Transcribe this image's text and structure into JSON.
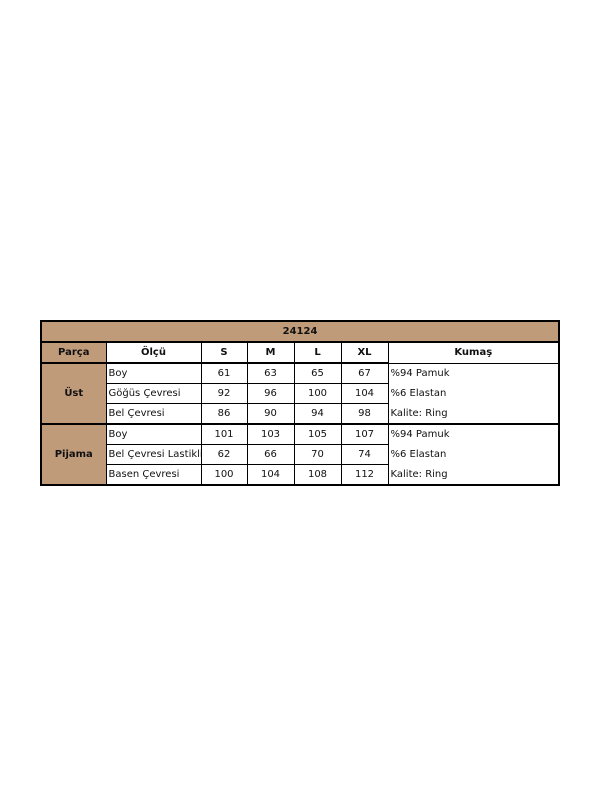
{
  "title": "24124",
  "headers": [
    "Parça",
    "Ölçü",
    "S",
    "M",
    "L",
    "XL",
    "Kumaş"
  ],
  "groups": [
    {
      "name": "Üst",
      "rows": [
        {
          "measure": "Boy",
          "values": [
            "61",
            "63",
            "65",
            "67"
          ],
          "fabric": "%94 Pamuk"
        },
        {
          "measure": "Göğüs Çevresi",
          "values": [
            "92",
            "96",
            "100",
            "104"
          ],
          "fabric": "%6 Elastan"
        },
        {
          "measure": "Bel Çevresi",
          "values": [
            "86",
            "90",
            "94",
            "98"
          ],
          "fabric": "Kalite: Ring"
        }
      ]
    },
    {
      "name": "Pijama",
      "rows": [
        {
          "measure": "Boy",
          "values": [
            "101",
            "103",
            "105",
            "107"
          ],
          "fabric": "%94 Pamuk"
        },
        {
          "measure": "Bel Çevresi Lastikli",
          "values": [
            "62",
            "66",
            "70",
            "74"
          ],
          "fabric": "%6 Elastan"
        },
        {
          "measure": "Basen Çevresi",
          "values": [
            "100",
            "104",
            "108",
            "112"
          ],
          "fabric": "Kalite: Ring"
        }
      ]
    }
  ],
  "colors": {
    "header_fill": "#bf9b7a",
    "border": "#000000"
  }
}
